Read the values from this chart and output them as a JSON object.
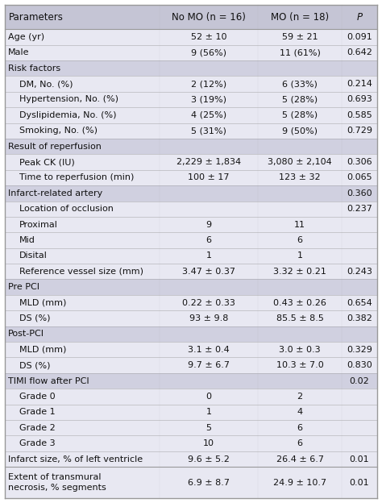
{
  "header": [
    "Parameters",
    "No MO (n = 16)",
    "MO (n = 18)",
    "P"
  ],
  "rows": [
    {
      "label": "Age (yr)",
      "indent": 0,
      "no_mo": "52 ± 10",
      "mo": "59 ± 21",
      "p": "0.091",
      "section": false,
      "multiline": false
    },
    {
      "label": "Male",
      "indent": 0,
      "no_mo": "9 (56%)",
      "mo": "11 (61%)",
      "p": "0.642",
      "section": false,
      "multiline": false
    },
    {
      "label": "Risk factors",
      "indent": 0,
      "no_mo": "",
      "mo": "",
      "p": "",
      "section": true,
      "multiline": false
    },
    {
      "label": "DM, No. (%)",
      "indent": 1,
      "no_mo": "2 (12%)",
      "mo": "6 (33%)",
      "p": "0.214",
      "section": false,
      "multiline": false
    },
    {
      "label": "Hypertension, No. (%)",
      "indent": 1,
      "no_mo": "3 (19%)",
      "mo": "5 (28%)",
      "p": "0.693",
      "section": false,
      "multiline": false
    },
    {
      "label": "Dyslipidemia, No. (%)",
      "indent": 1,
      "no_mo": "4 (25%)",
      "mo": "5 (28%)",
      "p": "0.585",
      "section": false,
      "multiline": false
    },
    {
      "label": "Smoking, No. (%)",
      "indent": 1,
      "no_mo": "5 (31%)",
      "mo": "9 (50%)",
      "p": "0.729",
      "section": false,
      "multiline": false
    },
    {
      "label": "Result of reperfusion",
      "indent": 0,
      "no_mo": "",
      "mo": "",
      "p": "",
      "section": true,
      "multiline": false
    },
    {
      "label": "Peak CK (IU)",
      "indent": 1,
      "no_mo": "2,229 ± 1,834",
      "mo": "3,080 ± 2,104",
      "p": "0.306",
      "section": false,
      "multiline": false
    },
    {
      "label": "Time to reperfusion (min)",
      "indent": 1,
      "no_mo": "100 ± 17",
      "mo": "123 ± 32",
      "p": "0.065",
      "section": false,
      "multiline": false
    },
    {
      "label": "Infarct-related artery",
      "indent": 0,
      "no_mo": "",
      "mo": "",
      "p": "0.360",
      "section": true,
      "multiline": false
    },
    {
      "label": "Location of occlusion",
      "indent": 1,
      "no_mo": "",
      "mo": "",
      "p": "0.237",
      "section": false,
      "multiline": false
    },
    {
      "label": "Proximal",
      "indent": 1,
      "no_mo": "9",
      "mo": "11",
      "p": "",
      "section": false,
      "multiline": false
    },
    {
      "label": "Mid",
      "indent": 1,
      "no_mo": "6",
      "mo": "6",
      "p": "",
      "section": false,
      "multiline": false
    },
    {
      "label": "Disital",
      "indent": 1,
      "no_mo": "1",
      "mo": "1",
      "p": "",
      "section": false,
      "multiline": false
    },
    {
      "label": "Reference vessel size (mm)",
      "indent": 1,
      "no_mo": "3.47 ± 0.37",
      "mo": "3.32 ± 0.21",
      "p": "0.243",
      "section": false,
      "multiline": false
    },
    {
      "label": "Pre PCI",
      "indent": 0,
      "no_mo": "",
      "mo": "",
      "p": "",
      "section": true,
      "multiline": false
    },
    {
      "label": "MLD (mm)",
      "indent": 1,
      "no_mo": "0.22 ± 0.33",
      "mo": "0.43 ± 0.26",
      "p": "0.654",
      "section": false,
      "multiline": false
    },
    {
      "label": "DS (%)",
      "indent": 1,
      "no_mo": "93 ± 9.8",
      "mo": "85.5 ± 8.5",
      "p": "0.382",
      "section": false,
      "multiline": false
    },
    {
      "label": "Post-PCI",
      "indent": 0,
      "no_mo": "",
      "mo": "",
      "p": "",
      "section": true,
      "multiline": false
    },
    {
      "label": "MLD (mm)",
      "indent": 1,
      "no_mo": "3.1 ± 0.4",
      "mo": "3.0 ± 0.3",
      "p": "0.329",
      "section": false,
      "multiline": false
    },
    {
      "label": "DS (%)",
      "indent": 1,
      "no_mo": "9.7 ± 6.7",
      "mo": "10.3 ± 7.0",
      "p": "0.830",
      "section": false,
      "multiline": false
    },
    {
      "label": "TIMI flow after PCI",
      "indent": 0,
      "no_mo": "",
      "mo": "",
      "p": "0.02",
      "section": true,
      "multiline": false
    },
    {
      "label": "Grade 0",
      "indent": 1,
      "no_mo": "0",
      "mo": "2",
      "p": "",
      "section": false,
      "multiline": false
    },
    {
      "label": "Grade 1",
      "indent": 1,
      "no_mo": "1",
      "mo": "4",
      "p": "",
      "section": false,
      "multiline": false
    },
    {
      "label": "Grade 2",
      "indent": 1,
      "no_mo": "5",
      "mo": "6",
      "p": "",
      "section": false,
      "multiline": false
    },
    {
      "label": "Grade 3",
      "indent": 1,
      "no_mo": "10",
      "mo": "6",
      "p": "",
      "section": false,
      "multiline": false
    },
    {
      "label": "Infarct size, % of left ventricle",
      "indent": 0,
      "no_mo": "9.6 ± 5.2",
      "mo": "26.4 ± 6.7",
      "p": "0.01",
      "section": false,
      "multiline": false
    },
    {
      "label": "Extent of transmural\nnecrosis, % segments",
      "indent": 0,
      "no_mo": "6.9 ± 8.7",
      "mo": "24.9 ± 10.7",
      "p": "0.01",
      "section": false,
      "multiline": true
    }
  ],
  "header_bg": "#c5c5d5",
  "data_bg": "#e8e8f2",
  "section_bg": "#d0d0e0",
  "border_color": "#999999",
  "text_color": "#111111",
  "font_size": 8.0,
  "header_font_size": 8.5,
  "fig_width": 4.74,
  "fig_height": 6.24,
  "dpi": 100
}
